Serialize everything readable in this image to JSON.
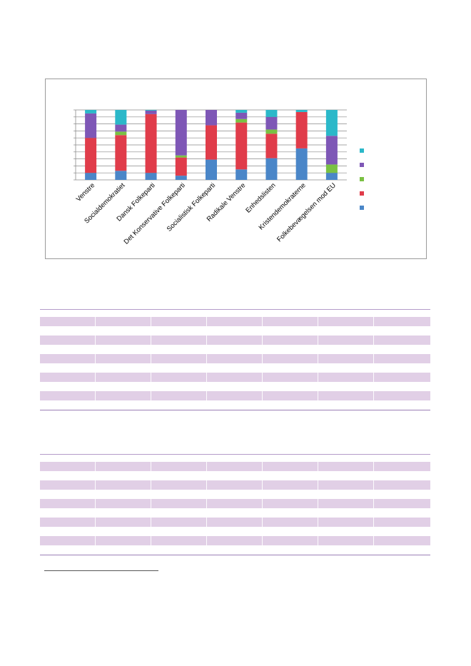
{
  "chart_data": {
    "type": "bar",
    "stacked": true,
    "percent_stacked": true,
    "categories": [
      "Venstre",
      "Socialdemokratiet",
      "Dansk Folkeparti",
      "Det Konservative Folkeparti",
      "Socialistisk Folkeparti",
      "Radikale Venstre",
      "Enhedslisten",
      "Kristendemokraterne",
      "Folkebevægelsen mod EU"
    ],
    "series": [
      {
        "color": "#4a86c8",
        "values": [
          10,
          13,
          10,
          6,
          29,
          15,
          31,
          45,
          10
        ]
      },
      {
        "color": "#e03c4a",
        "values": [
          50,
          51,
          84,
          26,
          49,
          67,
          35,
          52,
          0
        ]
      },
      {
        "color": "#7ac143",
        "values": [
          0,
          5,
          0,
          3,
          0,
          5,
          6,
          0,
          12
        ]
      },
      {
        "color": "#7e57b6",
        "values": [
          35,
          10,
          5,
          65,
          22,
          9,
          18,
          0,
          41
        ]
      },
      {
        "color": "#2bb8c9",
        "values": [
          5,
          21,
          1,
          0,
          0,
          4,
          10,
          3,
          37
        ]
      }
    ],
    "ylim": [
      0,
      100
    ],
    "y_ticks": [
      0,
      10,
      20,
      30,
      40,
      50,
      60,
      70,
      80,
      90,
      100
    ],
    "y_tick_labels_visible": false,
    "grid": true,
    "legend": "right",
    "legend_labels_visible": false
  },
  "tables": [
    {
      "rows": 10,
      "shaded_rows": [
        0,
        2,
        4,
        6,
        8
      ],
      "columns": 7
    },
    {
      "rows": 10,
      "shaded_rows": [
        0,
        2,
        4,
        6,
        8
      ],
      "columns": 7
    }
  ]
}
